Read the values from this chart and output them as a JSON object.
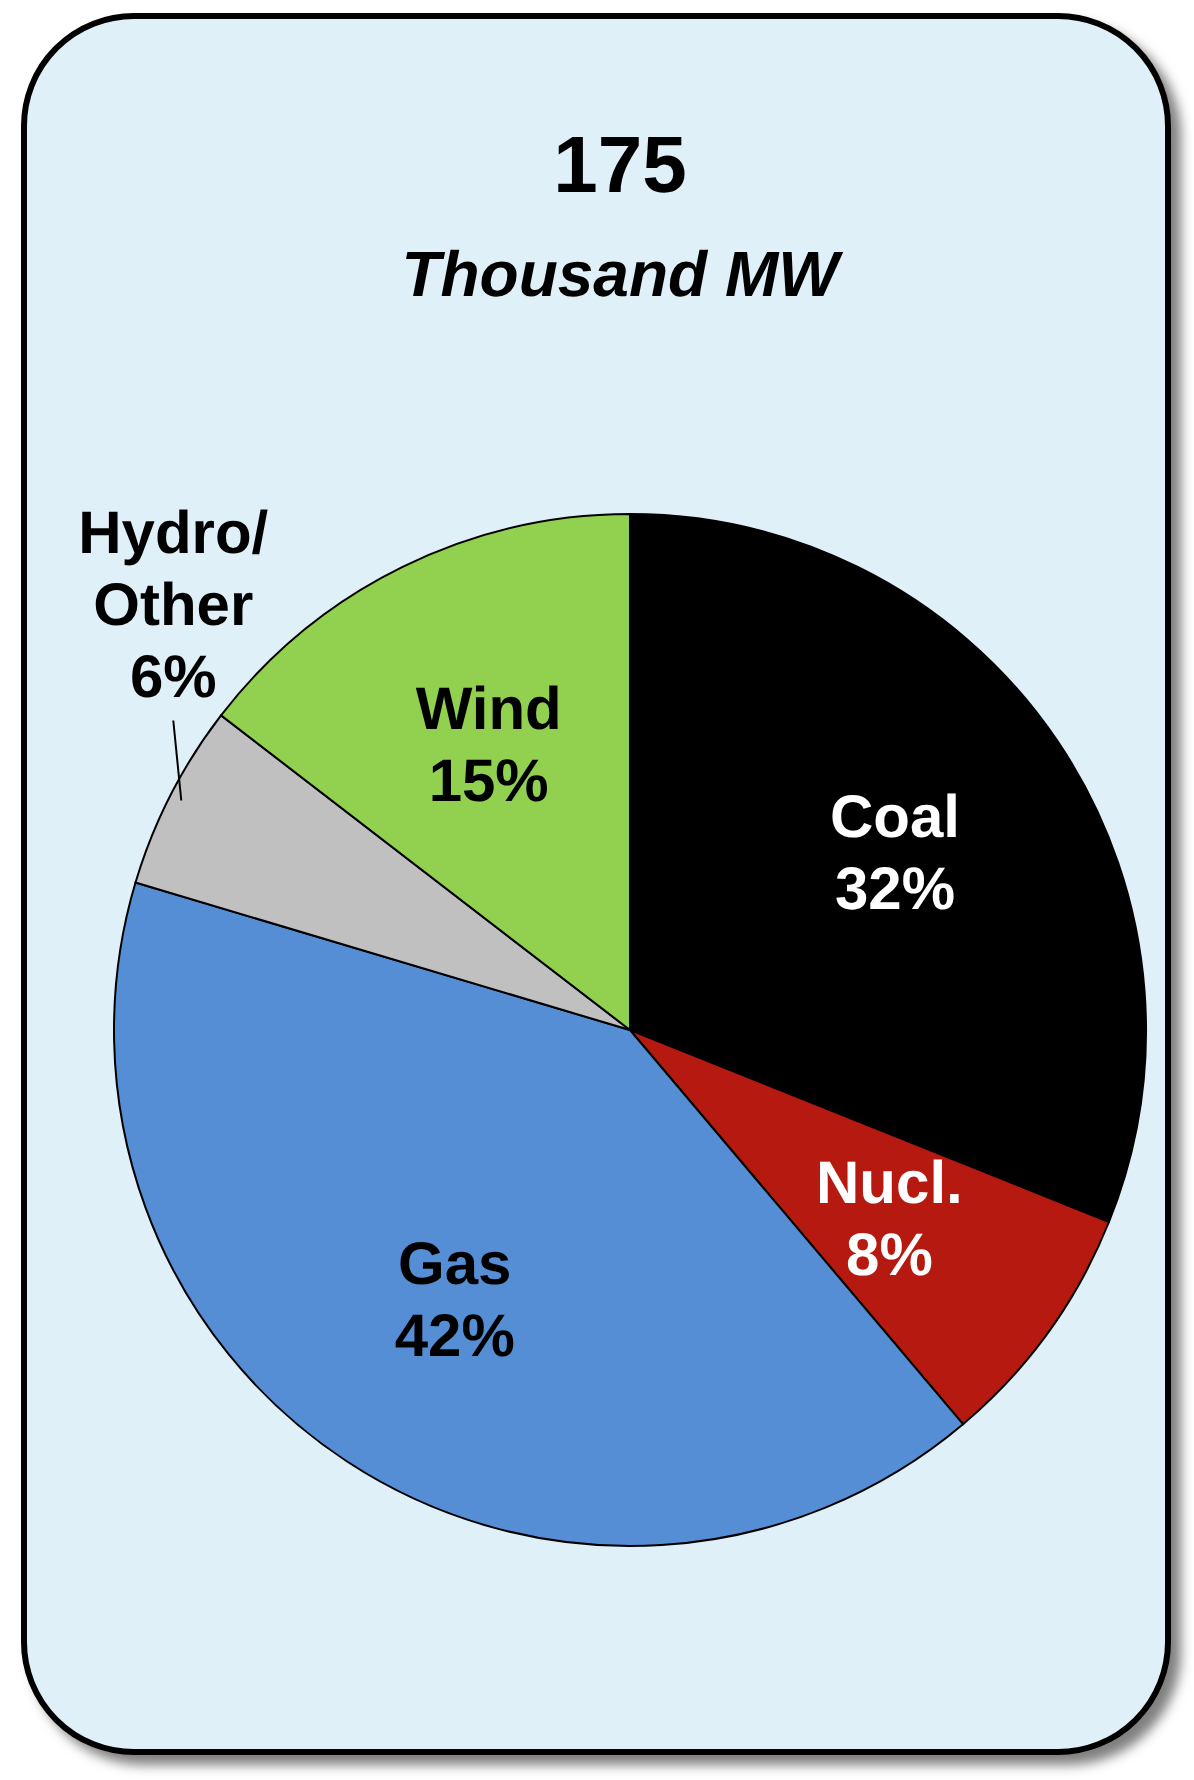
{
  "chart_data": {
    "type": "pie",
    "title": "175",
    "subtitle": "Thousand MW",
    "categories": [
      "Coal",
      "Nucl.",
      "Gas",
      "Hydro/Other",
      "Wind"
    ],
    "values": [
      32,
      8,
      42,
      6,
      15
    ],
    "value_labels": [
      "32%",
      "8%",
      "42%",
      "6%",
      "15%"
    ],
    "colors": [
      "#000000",
      "#b5190f",
      "#558ed5",
      "#c0c0c0",
      "#92d050"
    ]
  }
}
